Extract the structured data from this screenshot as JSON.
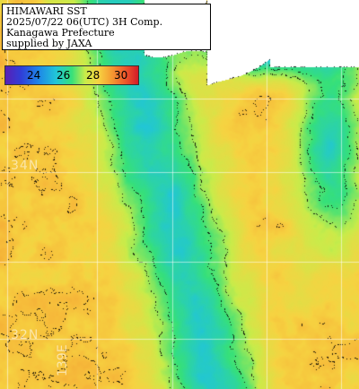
{
  "title": {
    "line1": "HIMAWARI SST",
    "line2": "2025/07/22 06(UTC) 3H Comp.",
    "line3": "Kanagawa Prefecture",
    "line4": "supplied by JAXA"
  },
  "legend": {
    "ticks": [
      "24",
      "26",
      "28",
      "30"
    ]
  },
  "graticule": {
    "lat_labels": [
      "34N",
      "32N"
    ],
    "lon_labels": [
      "139E"
    ]
  },
  "colors": {
    "land": "#ffffff",
    "warm": "#f08a3a",
    "mild": "#f2c24a",
    "cool": "#9be05a",
    "cold": "#38c6a8",
    "missing": "#000000"
  }
}
